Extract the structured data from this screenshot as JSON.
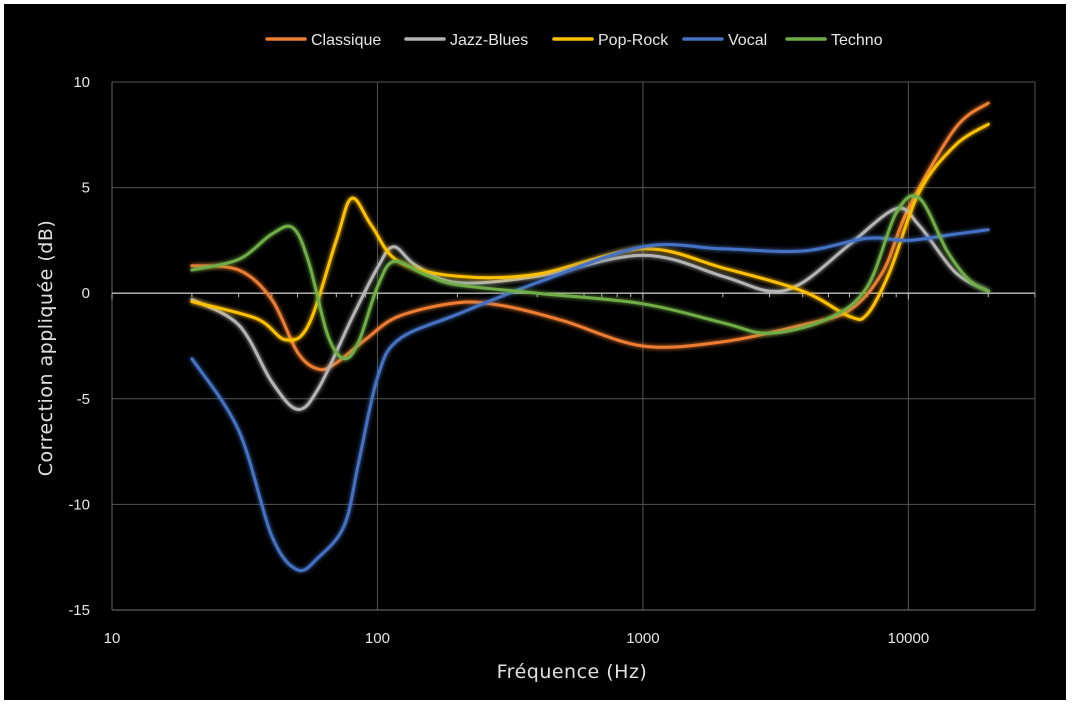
{
  "chart_data": {
    "type": "line",
    "title": "",
    "xlabel": "Fréquence (Hz)",
    "ylabel": "Correction appliquée (dB)",
    "x_scale": "log",
    "xlim": [
      10,
      30000
    ],
    "ylim": [
      -15,
      10
    ],
    "x_ticks": [
      10,
      100,
      1000,
      10000
    ],
    "x_tick_labels": [
      "10",
      "100",
      "1000",
      "10000"
    ],
    "y_ticks": [
      -15,
      -10,
      -5,
      0,
      5,
      10
    ],
    "y_tick_labels": [
      "-15",
      "-10",
      "-5",
      "0",
      "5",
      "10"
    ],
    "grid": true,
    "legend_position": "top",
    "background": "#000000",
    "series": [
      {
        "name": "Classique",
        "color": "#ed7d31",
        "points": [
          [
            20,
            1.3
          ],
          [
            30,
            1.1
          ],
          [
            40,
            -0.3
          ],
          [
            50,
            -2.8
          ],
          [
            60,
            -3.6
          ],
          [
            70,
            -3.3
          ],
          [
            90,
            -2.2
          ],
          [
            120,
            -1.1
          ],
          [
            200,
            -0.45
          ],
          [
            300,
            -0.6
          ],
          [
            500,
            -1.3
          ],
          [
            1000,
            -2.5
          ],
          [
            2000,
            -2.3
          ],
          [
            4000,
            -1.5
          ],
          [
            6000,
            -0.8
          ],
          [
            8000,
            1.0
          ],
          [
            10000,
            4.0
          ],
          [
            15000,
            7.8
          ],
          [
            20000,
            9.0
          ]
        ]
      },
      {
        "name": "Jazz-Blues",
        "color": "#b4b4b4",
        "points": [
          [
            20,
            -0.3
          ],
          [
            30,
            -1.5
          ],
          [
            40,
            -4.2
          ],
          [
            50,
            -5.5
          ],
          [
            60,
            -4.5
          ],
          [
            80,
            -1.2
          ],
          [
            100,
            1.2
          ],
          [
            115,
            2.2
          ],
          [
            140,
            1.3
          ],
          [
            200,
            0.5
          ],
          [
            400,
            0.8
          ],
          [
            1000,
            1.8
          ],
          [
            2000,
            0.8
          ],
          [
            3000,
            0.1
          ],
          [
            4000,
            0.5
          ],
          [
            6000,
            2.3
          ],
          [
            9000,
            4.0
          ],
          [
            11000,
            3.2
          ],
          [
            15000,
            1.0
          ],
          [
            20000,
            0.1
          ]
        ]
      },
      {
        "name": "Pop-Rock",
        "color": "#ffc000",
        "points": [
          [
            20,
            -0.4
          ],
          [
            35,
            -1.2
          ],
          [
            45,
            -2.2
          ],
          [
            55,
            -1.5
          ],
          [
            70,
            2.5
          ],
          [
            80,
            4.5
          ],
          [
            95,
            3.2
          ],
          [
            120,
            1.5
          ],
          [
            200,
            0.8
          ],
          [
            400,
            0.9
          ],
          [
            1000,
            2.1
          ],
          [
            2000,
            1.2
          ],
          [
            4000,
            0.1
          ],
          [
            6000,
            -1.1
          ],
          [
            7000,
            -1.0
          ],
          [
            8500,
            1.0
          ],
          [
            11000,
            4.8
          ],
          [
            15000,
            7.0
          ],
          [
            20000,
            8.0
          ]
        ]
      },
      {
        "name": "Vocal",
        "color": "#4472c4",
        "points": [
          [
            20,
            -3.1
          ],
          [
            30,
            -6.5
          ],
          [
            40,
            -11.5
          ],
          [
            50,
            -13.1
          ],
          [
            60,
            -12.5
          ],
          [
            75,
            -11.0
          ],
          [
            85,
            -8.0
          ],
          [
            100,
            -4.0
          ],
          [
            120,
            -2.2
          ],
          [
            200,
            -1.0
          ],
          [
            400,
            0.5
          ],
          [
            1000,
            2.2
          ],
          [
            2000,
            2.1
          ],
          [
            4000,
            2.0
          ],
          [
            7000,
            2.6
          ],
          [
            10000,
            2.5
          ],
          [
            15000,
            2.8
          ],
          [
            20000,
            3.0
          ]
        ]
      },
      {
        "name": "Techno",
        "color": "#70ad47",
        "points": [
          [
            20,
            1.1
          ],
          [
            30,
            1.6
          ],
          [
            40,
            2.8
          ],
          [
            48,
            3.1
          ],
          [
            55,
            1.5
          ],
          [
            65,
            -2.0
          ],
          [
            75,
            -3.1
          ],
          [
            85,
            -2.3
          ],
          [
            100,
            0.3
          ],
          [
            115,
            1.5
          ],
          [
            150,
            0.9
          ],
          [
            200,
            0.4
          ],
          [
            400,
            0.0
          ],
          [
            1000,
            -0.5
          ],
          [
            2000,
            -1.4
          ],
          [
            3000,
            -1.9
          ],
          [
            5000,
            -1.2
          ],
          [
            7000,
            0.3
          ],
          [
            9000,
            3.8
          ],
          [
            11000,
            4.5
          ],
          [
            14000,
            2.0
          ],
          [
            17000,
            0.6
          ],
          [
            20000,
            0.1
          ]
        ]
      }
    ]
  }
}
